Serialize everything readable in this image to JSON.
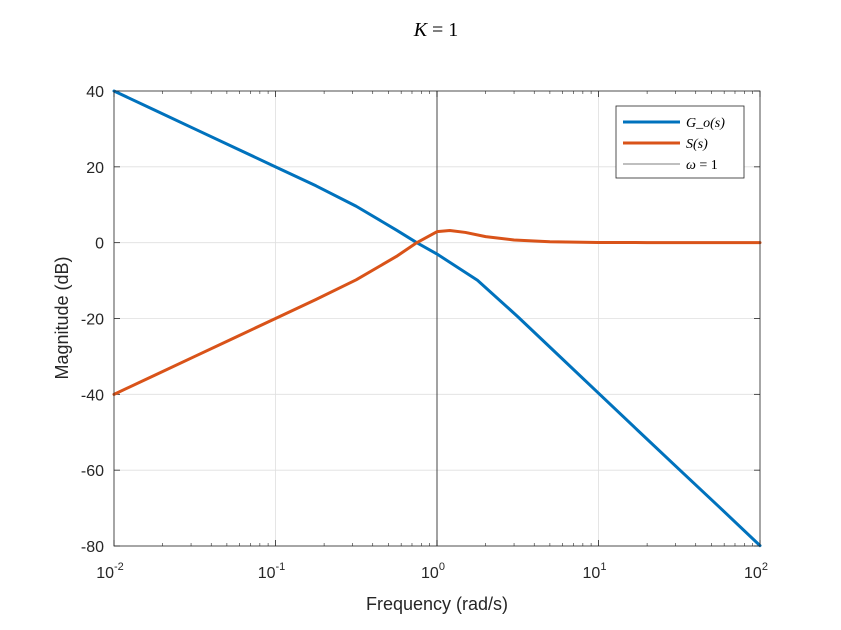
{
  "chart_data": {
    "type": "line",
    "title_var": "K",
    "title_rest": " = 1",
    "xlabel": "Frequency (rad/s)",
    "ylabel": "Magnitude (dB)",
    "xscale": "log",
    "xlim": [
      0.01,
      100
    ],
    "ylim": [
      -80,
      40
    ],
    "xticks": [
      {
        "base": "10",
        "exp": "-2",
        "value": 0.01
      },
      {
        "base": "10",
        "exp": "-1",
        "value": 0.1
      },
      {
        "base": "10",
        "exp": "0",
        "value": 1
      },
      {
        "base": "10",
        "exp": "1",
        "value": 10
      },
      {
        "base": "10",
        "exp": "2",
        "value": 100
      }
    ],
    "yticks": [
      {
        "label": "40",
        "value": 40
      },
      {
        "label": "20",
        "value": 20
      },
      {
        "label": "0",
        "value": 0
      },
      {
        "label": "-20",
        "value": -20
      },
      {
        "label": "-40",
        "value": -40
      },
      {
        "label": "-60",
        "value": -60
      },
      {
        "label": "-80",
        "value": -80
      }
    ],
    "grid": true,
    "legend_position": "top-right",
    "vline": {
      "x": 1,
      "name": "ω = 1",
      "color": "#000000"
    },
    "series": [
      {
        "name": "G_o(s)",
        "color": "#0072BD",
        "x": [
          0.01,
          0.0178,
          0.0316,
          0.0562,
          0.1,
          0.178,
          0.316,
          0.562,
          0.75,
          1,
          1.78,
          3.16,
          5.62,
          10,
          17.8,
          31.6,
          56.2,
          100
        ],
        "y": [
          40,
          35,
          30,
          25,
          20,
          15,
          9.6,
          3.3,
          0,
          -3,
          -9.9,
          -19.5,
          -29.6,
          -39.7,
          -49.8,
          -59.8,
          -69.8,
          -79.9
        ]
      },
      {
        "name": "S(s)",
        "color": "#D95319",
        "x": [
          0.01,
          0.0178,
          0.0316,
          0.0562,
          0.1,
          0.178,
          0.316,
          0.562,
          0.75,
          1,
          1.2,
          1.5,
          2,
          3,
          5,
          10,
          20,
          50,
          100
        ],
        "y": [
          -40,
          -35,
          -30,
          -25,
          -20,
          -15,
          -9.8,
          -3.6,
          0,
          2.9,
          3.2,
          2.7,
          1.6,
          0.7,
          0.25,
          0.06,
          0.02,
          0,
          0
        ]
      }
    ],
    "legend": {
      "item1_name": "G_o(s)",
      "item2_name": "S(s)",
      "item3_var": "ω",
      "item3_rest": " = 1"
    }
  }
}
